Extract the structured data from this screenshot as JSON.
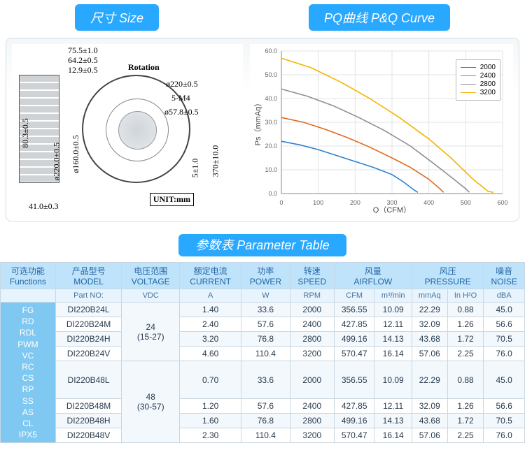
{
  "headers": {
    "size": "尺寸 Size",
    "pq": "PQ曲线 P&Q Curve",
    "param": "参数表 Parameter Table"
  },
  "drawing": {
    "rotation": "Rotation",
    "unit": "UNIT:mm",
    "dims": {
      "d1": "75.5±1.0",
      "d2": "64.2±0.5",
      "d3": "12.9±0.5",
      "d4": "80.3±0.5",
      "d5": "ø160.0±0.5",
      "d6": "ø220.0±0.5",
      "d7": "41.0±0.3",
      "d8": "ø220±0.5",
      "d9": "5-M4",
      "d10": "ø57.8±0.5",
      "d11": "5±1.0",
      "d12": "370±10.0"
    }
  },
  "chart": {
    "xlabel": "Q（CFM）",
    "ylabel": "Ps（mmAq）",
    "xlim": [
      0,
      600
    ],
    "xtick_step": 100,
    "ylim": [
      0,
      60
    ],
    "ytick_step": 10,
    "grid_color": "#dfe3e6",
    "axis_color": "#888",
    "series": [
      {
        "name": "2000",
        "color": "#2f7fd1",
        "points": [
          [
            0,
            22
          ],
          [
            50,
            20.5
          ],
          [
            100,
            18.5
          ],
          [
            150,
            16
          ],
          [
            200,
            13.5
          ],
          [
            250,
            11
          ],
          [
            300,
            8
          ],
          [
            330,
            5
          ],
          [
            360,
            1.5
          ],
          [
            370,
            0.5
          ]
        ]
      },
      {
        "name": "2400",
        "color": "#e06a1b",
        "points": [
          [
            0,
            32
          ],
          [
            60,
            30
          ],
          [
            120,
            27
          ],
          [
            180,
            23.5
          ],
          [
            240,
            19.5
          ],
          [
            300,
            15
          ],
          [
            350,
            11
          ],
          [
            400,
            6
          ],
          [
            430,
            2
          ],
          [
            440,
            0.5
          ]
        ]
      },
      {
        "name": "2800",
        "color": "#8b8f93",
        "points": [
          [
            0,
            44
          ],
          [
            70,
            41
          ],
          [
            140,
            37
          ],
          [
            210,
            32
          ],
          [
            280,
            26.5
          ],
          [
            350,
            20
          ],
          [
            410,
            13
          ],
          [
            460,
            7
          ],
          [
            500,
            2
          ],
          [
            510,
            0.5
          ]
        ]
      },
      {
        "name": "3200",
        "color": "#f4b400",
        "points": [
          [
            0,
            57
          ],
          [
            80,
            53
          ],
          [
            160,
            47
          ],
          [
            240,
            40
          ],
          [
            320,
            32
          ],
          [
            400,
            23
          ],
          [
            460,
            15
          ],
          [
            520,
            6
          ],
          [
            560,
            1
          ],
          [
            575,
            0.5
          ]
        ]
      }
    ]
  },
  "table": {
    "head_groups": [
      {
        "cn": "可选功能",
        "en": "Functions"
      },
      {
        "cn": "产品型号",
        "en": "MODEL"
      },
      {
        "cn": "电压范围",
        "en": "VOLTAGE"
      },
      {
        "cn": "额定电流",
        "en": "CURRENT"
      },
      {
        "cn": "功率",
        "en": "POWER"
      },
      {
        "cn": "转速",
        "en": "SPEED"
      },
      {
        "cn": "风量",
        "en": "AIRFLOW",
        "span": 2
      },
      {
        "cn": "风压",
        "en": "PRESSURE",
        "span": 2
      },
      {
        "cn": "噪音",
        "en": "NOISE"
      }
    ],
    "sub_units": [
      "",
      "Part NO:",
      "VDC",
      "A",
      "W",
      "RPM",
      "CFM",
      "m³/min",
      "mmAq",
      "In H²O",
      "dBA"
    ],
    "functions": [
      "FG",
      "RD",
      "RDL",
      "PWM",
      "VC",
      "RC",
      "CS",
      "RP",
      "SS",
      "AS",
      "CL",
      "IPX5"
    ],
    "voltage_groups": [
      {
        "nom": "24",
        "range": "(15-27)",
        "rows": 4
      },
      {
        "nom": "48",
        "range": "(30-57)",
        "rows": 4
      }
    ],
    "rows": [
      [
        "DI220B24L",
        "1.40",
        "33.6",
        "2000",
        "356.55",
        "10.09",
        "22.29",
        "0.88",
        "45.0"
      ],
      [
        "DI220B24M",
        "2.40",
        "57.6",
        "2400",
        "427.85",
        "12.11",
        "32.09",
        "1.26",
        "56.6"
      ],
      [
        "DI220B24H",
        "3.20",
        "76.8",
        "2800",
        "499.16",
        "14.13",
        "43.68",
        "1.72",
        "70.5"
      ],
      [
        "DI220B24V",
        "4.60",
        "110.4",
        "3200",
        "570.47",
        "16.14",
        "57.06",
        "2.25",
        "76.0"
      ],
      [
        "DI220B48L",
        "0.70",
        "33.6",
        "2000",
        "356.55",
        "10.09",
        "22.29",
        "0.88",
        "45.0"
      ],
      [
        "DI220B48M",
        "1.20",
        "57.6",
        "2400",
        "427.85",
        "12.11",
        "32.09",
        "1.26",
        "56.6"
      ],
      [
        "DI220B48H",
        "1.60",
        "76.8",
        "2800",
        "499.16",
        "14.13",
        "43.68",
        "1.72",
        "70.5"
      ],
      [
        "DI220B48V",
        "2.30",
        "110.4",
        "3200",
        "570.47",
        "16.14",
        "57.06",
        "2.25",
        "76.0"
      ]
    ]
  }
}
